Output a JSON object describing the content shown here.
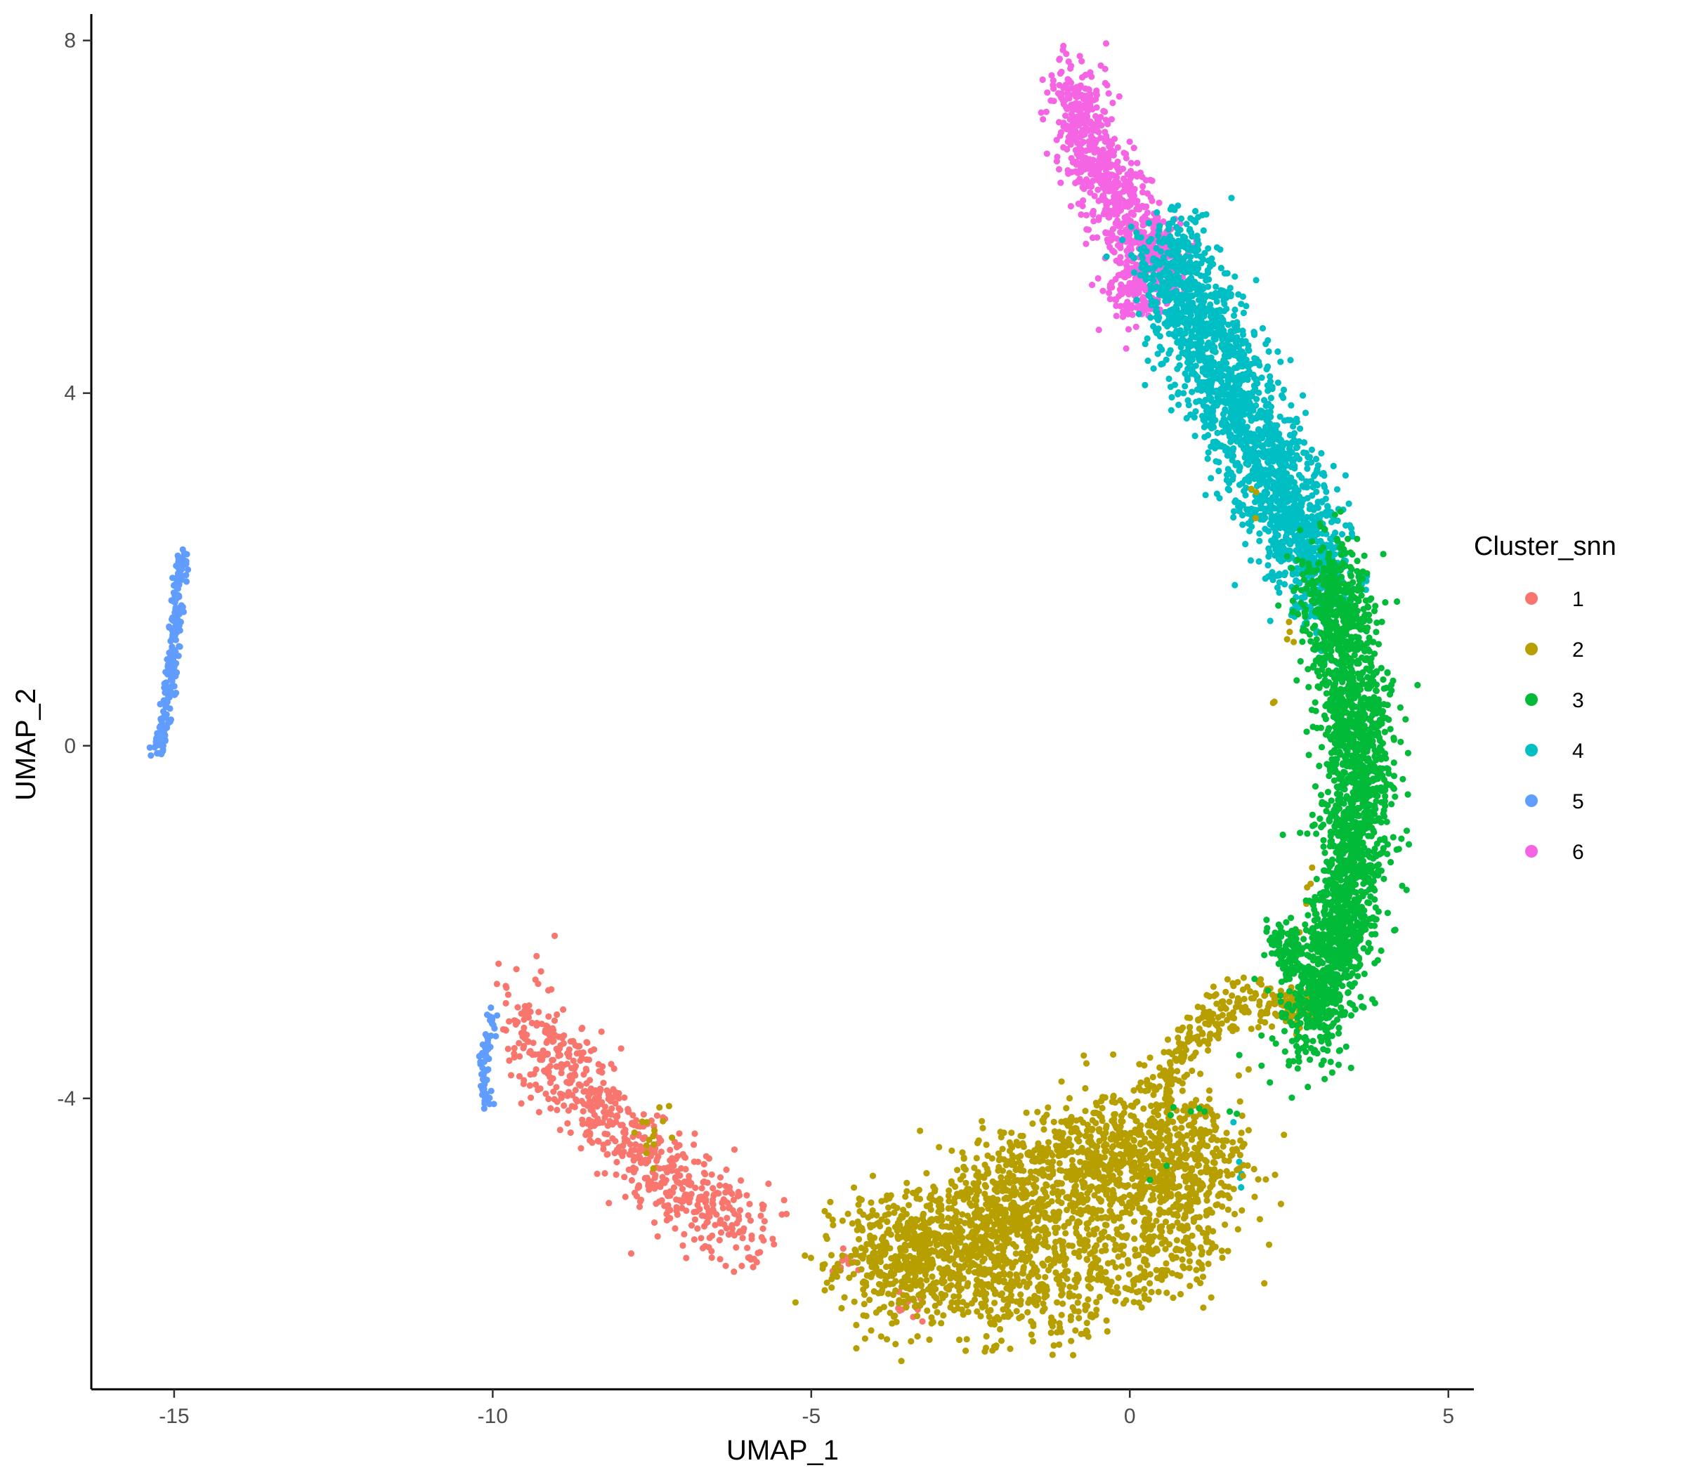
{
  "chart_data": {
    "type": "scatter",
    "title": "",
    "xlabel": "UMAP_1",
    "ylabel": "UMAP_2",
    "xlim": [
      -16.3,
      5.4
    ],
    "ylim": [
      -7.3,
      8.3
    ],
    "x_ticks": [
      -15,
      -10,
      -5,
      0,
      5
    ],
    "x_tick_labels": [
      "-15",
      "-10",
      "-5",
      "0",
      "5"
    ],
    "y_ticks": [
      -4,
      0,
      4,
      8
    ],
    "y_tick_labels": [
      "-4",
      "0",
      "4",
      "8"
    ],
    "grid": false,
    "legend": {
      "title": "Cluster_snn",
      "position": "right"
    },
    "series": [
      {
        "name": "1",
        "color": "#F8766D",
        "regions": [
          {
            "points": [
              [
                -9.5,
                -3.05
              ],
              [
                -9.1,
                -3.5
              ],
              [
                -8.6,
                -3.9
              ],
              [
                -8.1,
                -4.3
              ],
              [
                -7.7,
                -4.6
              ],
              [
                -7.2,
                -4.95
              ],
              [
                -6.6,
                -5.2
              ],
              [
                -6.0,
                -5.55
              ],
              [
                -5.8,
                -5.6
              ]
            ],
            "spread": 0.32,
            "n": 650
          },
          {
            "points": [
              [
                -4.6,
                -5.85
              ],
              [
                -4.2,
                -5.9
              ]
            ],
            "spread": 0.08,
            "n": 10
          },
          {
            "points": [
              [
                -3.6,
                -6.3
              ],
              [
                -3.2,
                -6.45
              ]
            ],
            "spread": 0.08,
            "n": 14
          }
        ]
      },
      {
        "name": "2",
        "color": "#B79F00",
        "regions": [
          {
            "points": [
              [
                -4.2,
                -5.9
              ],
              [
                -3.3,
                -5.75
              ],
              [
                -2.5,
                -5.5
              ],
              [
                -1.7,
                -5.2
              ],
              [
                -0.9,
                -4.95
              ],
              [
                -0.1,
                -4.7
              ],
              [
                0.6,
                -4.55
              ],
              [
                1.4,
                -4.8
              ]
            ],
            "spread": 0.48,
            "n": 2100
          },
          {
            "points": [
              [
                -2.5,
                -6.3
              ],
              [
                -1.3,
                -6.25
              ],
              [
                0.0,
                -5.9
              ],
              [
                1.2,
                -5.5
              ]
            ],
            "spread": 0.35,
            "n": 500
          },
          {
            "points": [
              [
                0.4,
                -3.9
              ],
              [
                1.0,
                -3.3
              ],
              [
                1.6,
                -2.9
              ],
              [
                2.3,
                -2.9
              ],
              [
                2.9,
                -3.0
              ]
            ],
            "spread": 0.15,
            "n": 260
          },
          {
            "points": [
              [
                -7.3,
                -4.0
              ],
              [
                -7.6,
                -4.6
              ]
            ],
            "spread": 0.12,
            "n": 14
          },
          {
            "points": [
              [
                2.3,
                1.5
              ],
              [
                2.9,
                0.8
              ],
              [
                3.0,
                -1.1
              ],
              [
                2.6,
                -2.2
              ],
              [
                1.8,
                3.6
              ]
            ],
            "spread": 0.05,
            "n": 14
          }
        ]
      },
      {
        "name": "3",
        "color": "#00BA38",
        "regions": [
          {
            "points": [
              [
                3.1,
                2.0
              ],
              [
                3.4,
                1.0
              ],
              [
                3.6,
                0.0
              ],
              [
                3.55,
                -1.0
              ],
              [
                3.35,
                -2.0
              ],
              [
                3.0,
                -2.8
              ],
              [
                2.8,
                -3.3
              ]
            ],
            "spread": 0.33,
            "n": 2200
          },
          {
            "points": [
              [
                2.35,
                -2.1
              ],
              [
                2.6,
                -2.6
              ]
            ],
            "spread": 0.15,
            "n": 110
          },
          {
            "points": [
              [
                1.5,
                -4.4
              ],
              [
                1.7,
                -3.6
              ],
              [
                0.8,
                -4.2
              ],
              [
                0.3,
                -5.0
              ]
            ],
            "spread": 0.1,
            "n": 10
          }
        ]
      },
      {
        "name": "4",
        "color": "#00BFC4",
        "regions": [
          {
            "points": [
              [
                0.6,
                5.7
              ],
              [
                0.9,
                5.0
              ],
              [
                1.3,
                4.4
              ],
              [
                1.8,
                3.7
              ],
              [
                2.3,
                3.0
              ],
              [
                2.7,
                2.4
              ],
              [
                3.1,
                1.8
              ]
            ],
            "spread": 0.38,
            "n": 2000
          },
          {
            "points": [
              [
                1.7,
                -5.0
              ],
              [
                1.6,
                -4.2
              ]
            ],
            "spread": 0.06,
            "n": 5
          }
        ]
      },
      {
        "name": "5",
        "color": "#619CFF",
        "regions": [
          {
            "points": [
              [
                -15.25,
                -0.1
              ],
              [
                -15.1,
                0.5
              ],
              [
                -15.0,
                1.2
              ],
              [
                -14.95,
                1.8
              ],
              [
                -14.85,
                2.2
              ]
            ],
            "spread": 0.06,
            "n": 220
          },
          {
            "points": [
              [
                -10.0,
                -3.0
              ],
              [
                -10.1,
                -3.4
              ],
              [
                -10.15,
                -3.8
              ],
              [
                -10.05,
                -4.1
              ]
            ],
            "spread": 0.06,
            "n": 70
          }
        ]
      },
      {
        "name": "6",
        "color": "#F564E3",
        "regions": [
          {
            "points": [
              [
                -0.95,
                7.5
              ],
              [
                -0.75,
                7.0
              ],
              [
                -0.5,
                6.6
              ],
              [
                -0.2,
                6.2
              ],
              [
                0.15,
                5.85
              ],
              [
                0.5,
                5.45
              ],
              [
                -0.1,
                5.1
              ]
            ],
            "spread": 0.28,
            "n": 900
          }
        ]
      }
    ]
  }
}
